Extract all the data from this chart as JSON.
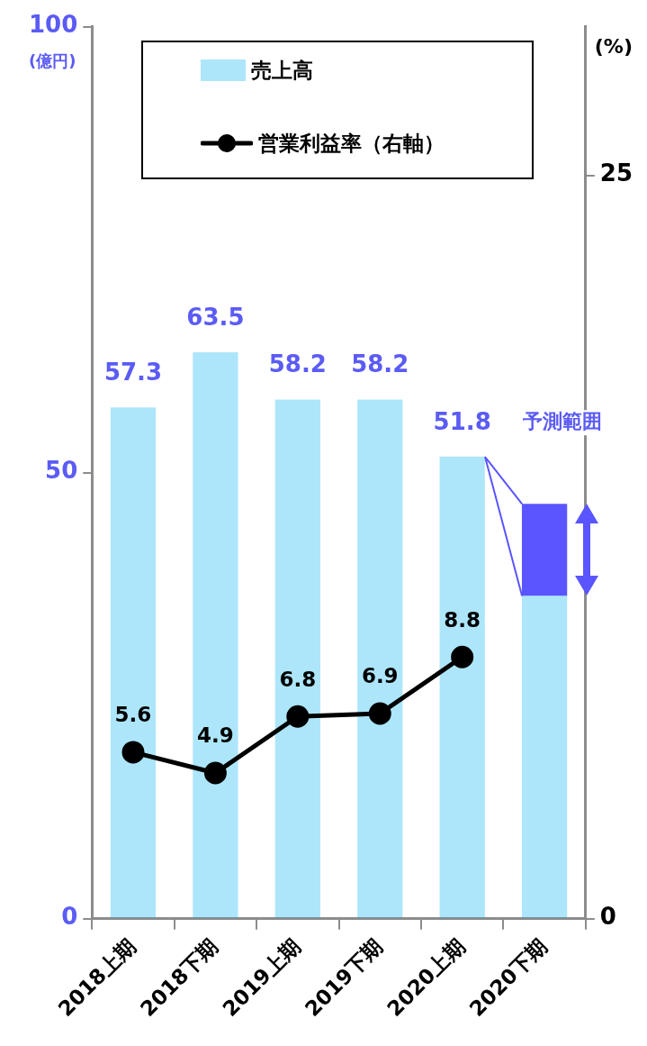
{
  "chart_data": {
    "type": "bar",
    "categories": [
      "2018上期",
      "2018下期",
      "2019上期",
      "2019下期",
      "2020上期",
      "2020下期"
    ],
    "series": [
      {
        "name": "売上高",
        "color": "#00b0f0",
        "values": [
          57.3,
          63.5,
          58.2,
          58.2,
          51.8,
          36.2
        ],
        "value_labels": [
          "57.3",
          "63.5",
          "58.2",
          "58.2",
          "51.8",
          null
        ]
      },
      {
        "color": "#5a55ff",
        "values": [
          null,
          null,
          null,
          null,
          null,
          10.3
        ]
      },
      {
        "name": "営業利益率（右軸）",
        "type": "line",
        "axis": "y2",
        "color": "#000000",
        "values": [
          5.6,
          4.9,
          6.8,
          6.9,
          8.8,
          null
        ],
        "value_labels": [
          "5.6",
          "4.9",
          "6.8",
          "6.9",
          "8.8",
          null
        ]
      }
    ],
    "stacked": true,
    "ylim": [
      0,
      100
    ],
    "yticks": [
      0,
      50,
      100
    ],
    "ylabel": "(億円)",
    "y2lim": [
      0,
      30
    ],
    "y2ticks": [
      0,
      25
    ],
    "y2label": "(%)",
    "legend": "top",
    "grid": false,
    "marker": "circle",
    "line_style": "solid",
    "annotations": [
      "予測範囲"
    ]
  }
}
